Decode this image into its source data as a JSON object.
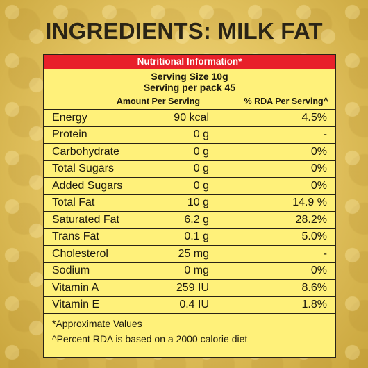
{
  "heading": "INGREDIENTS: MILK FAT",
  "panel": {
    "title": "Nutritional Information*",
    "serving_size": "Serving Size 10g",
    "servings_per_pack": "Serving per pack 45",
    "col_amount": "Amount Per Serving",
    "col_rda": "% RDA Per Serving^",
    "rows": [
      {
        "name": "Energy",
        "amount": "90 kcal",
        "rda": "4.5%"
      },
      {
        "name": "Protein",
        "amount": "0 g",
        "rda": "-"
      },
      {
        "name": "Carbohydrate",
        "amount": "0 g",
        "rda": "0%"
      },
      {
        "name": "Total Sugars",
        "amount": "0 g",
        "rda": "0%"
      },
      {
        "name": "Added Sugars",
        "amount": "0 g",
        "rda": "0%"
      },
      {
        "name": "Total Fat",
        "amount": "10 g",
        "rda": "14.9 %"
      },
      {
        "name": "Saturated Fat",
        "amount": "6.2 g",
        "rda": "28.2%"
      },
      {
        "name": "Trans Fat",
        "amount": "0.1 g",
        "rda": "5.0%"
      },
      {
        "name": "Cholesterol",
        "amount": "25 mg",
        "rda": "-"
      },
      {
        "name": "Sodium",
        "amount": "0 mg",
        "rda": "0%"
      },
      {
        "name": "Vitamin A",
        "amount": "259 IU",
        "rda": "8.6%"
      },
      {
        "name": "Vitamin E",
        "amount": "0.4 IU",
        "rda": "1.8%"
      }
    ],
    "footnote_1": "*Approximate Values",
    "footnote_2": "^Percent RDA is based on a 2000 calorie diet"
  },
  "colors": {
    "title_bar": "#e8202a",
    "panel": "#fff17a",
    "background_gold": "#e6c765"
  }
}
